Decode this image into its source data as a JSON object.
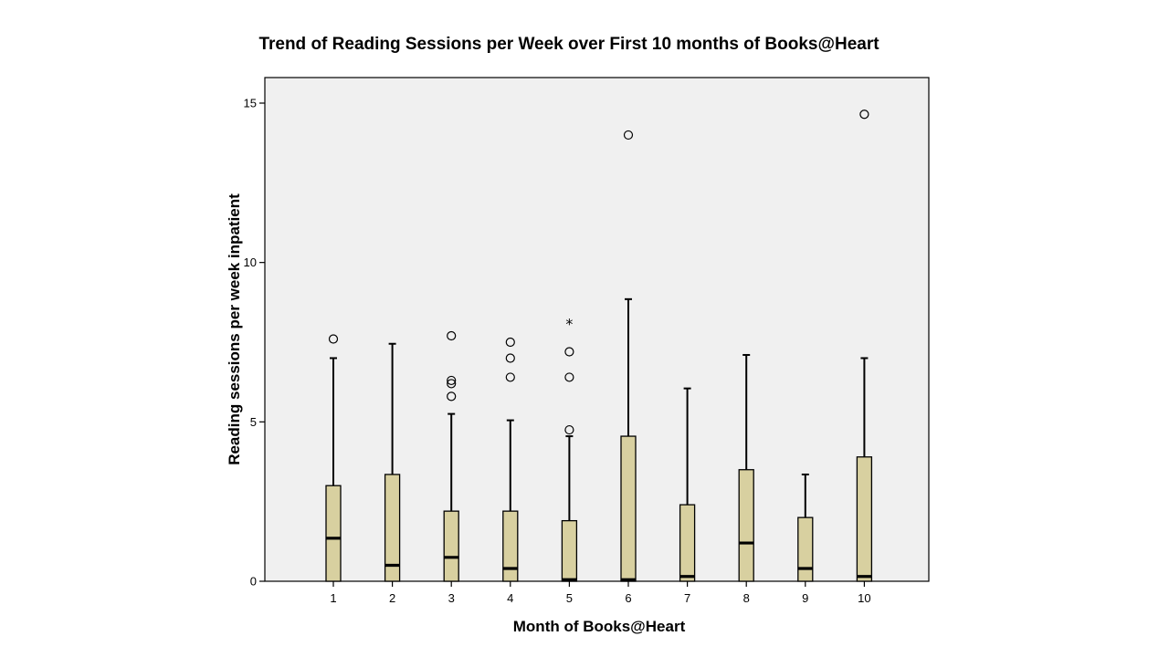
{
  "chart_data": {
    "type": "boxplot",
    "title": "Trend of Reading Sessions per Week over First 10 months of Books@Heart",
    "xlabel": "Month of Books@Heart",
    "ylabel": "Reading sessions per week inpatient",
    "ylim": [
      0,
      15.7
    ],
    "yticks": [
      0,
      5,
      10,
      15
    ],
    "grid": false,
    "background_color": "#f0f0f0",
    "box_color": "#d8d0a0",
    "categories": [
      "1",
      "2",
      "3",
      "4",
      "5",
      "6",
      "7",
      "8",
      "9",
      "10"
    ],
    "boxes": [
      {
        "month": "1",
        "whisker_low": 0,
        "q1": 0,
        "median": 1.35,
        "q3": 3.0,
        "whisker_high": 7.0,
        "outliers": [
          7.6
        ],
        "extremes": []
      },
      {
        "month": "2",
        "whisker_low": 0,
        "q1": 0,
        "median": 0.5,
        "q3": 3.35,
        "whisker_high": 7.45,
        "outliers": [],
        "extremes": []
      },
      {
        "month": "3",
        "whisker_low": 0,
        "q1": 0,
        "median": 0.75,
        "q3": 2.2,
        "whisker_high": 5.25,
        "outliers": [
          7.7,
          6.3,
          6.2,
          5.8
        ],
        "extremes": []
      },
      {
        "month": "4",
        "whisker_low": 0,
        "q1": 0,
        "median": 0.4,
        "q3": 2.2,
        "whisker_high": 5.05,
        "outliers": [
          7.5,
          7.0,
          6.4
        ],
        "extremes": []
      },
      {
        "month": "5",
        "whisker_low": 0,
        "q1": 0,
        "median": 0.05,
        "q3": 1.9,
        "whisker_high": 4.55,
        "outliers": [
          7.2,
          6.4,
          4.75
        ],
        "extremes": [
          8.15
        ]
      },
      {
        "month": "6",
        "whisker_low": 0,
        "q1": 0,
        "median": 0.05,
        "q3": 4.55,
        "whisker_high": 8.85,
        "outliers": [
          14.0
        ],
        "extremes": []
      },
      {
        "month": "7",
        "whisker_low": 0,
        "q1": 0,
        "median": 0.15,
        "q3": 2.4,
        "whisker_high": 6.05,
        "outliers": [],
        "extremes": []
      },
      {
        "month": "8",
        "whisker_low": 0,
        "q1": 0,
        "median": 1.2,
        "q3": 3.5,
        "whisker_high": 7.1,
        "outliers": [],
        "extremes": []
      },
      {
        "month": "9",
        "whisker_low": 0,
        "q1": 0,
        "median": 0.4,
        "q3": 2.0,
        "whisker_high": 3.35,
        "outliers": [],
        "extremes": []
      },
      {
        "month": "10",
        "whisker_low": 0,
        "q1": 0,
        "median": 0.15,
        "q3": 3.9,
        "whisker_high": 7.0,
        "outliers": [
          14.65
        ],
        "extremes": []
      }
    ]
  }
}
